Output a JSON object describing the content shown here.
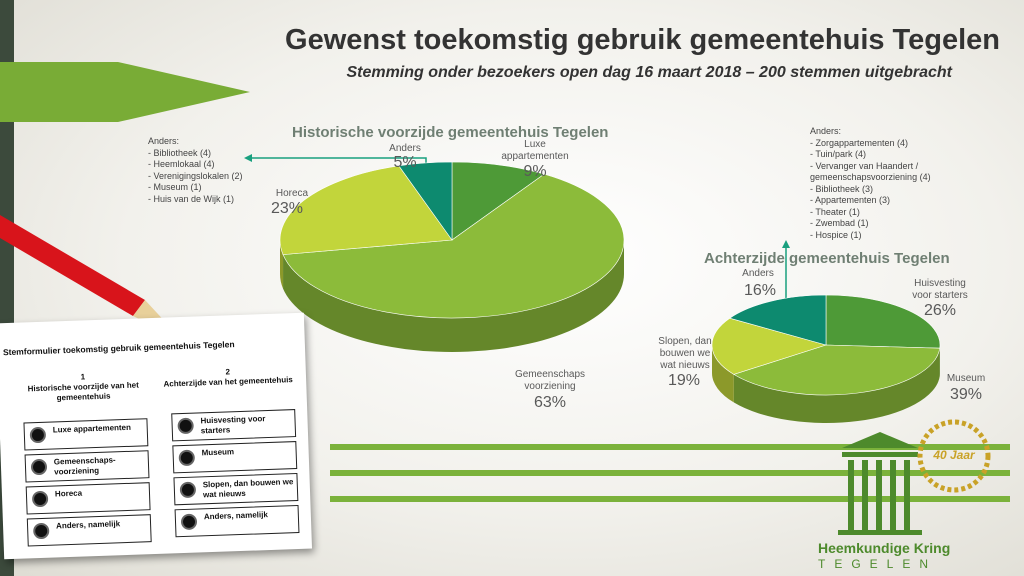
{
  "title": "Gewenst toekomstig gebruik gemeentehuis Tegelen",
  "subtitle": "Stemming onder bezoekers open dag 16 maart 2018 – 200 stemmen uitgebracht",
  "colors": {
    "bright_green": "#8cbb3a",
    "olive": "#c2d53b",
    "teal": "#0d8a6f",
    "dark_green": "#4e9a37"
  },
  "chart_data": [
    {
      "type": "pie",
      "title": "Historische voorzijde gemeentehuis Tegelen",
      "categories": [
        "Luxe appartementen",
        "Gemeenschapsvoorziening",
        "Horeca",
        "Anders"
      ],
      "values": [
        9,
        63,
        23,
        5
      ],
      "labels": [
        {
          "name": "Luxe\nappartementen",
          "pct": "9%"
        },
        {
          "name": "Gemeenschaps\nvoorziening",
          "pct": "63%"
        },
        {
          "name": "Horeca",
          "pct": "23%"
        },
        {
          "name": "Anders",
          "pct": "5%"
        }
      ],
      "anders_heading": "Anders:",
      "anders_items": [
        "Bibliotheek (4)",
        "Heemlokaal (4)",
        "Verenigingslokalen (2)",
        "Museum (1)",
        "Huis van de Wijk (1)"
      ]
    },
    {
      "type": "pie",
      "title": "Achterzijde gemeentehuis Tegelen",
      "categories": [
        "Huisvesting voor starters",
        "Museum",
        "Slopen, dan bouwen we wat nieuws",
        "Anders"
      ],
      "values": [
        26,
        39,
        19,
        16
      ],
      "labels": [
        {
          "name": "Huisvesting\nvoor starters",
          "pct": "26%"
        },
        {
          "name": "Museum",
          "pct": "39%"
        },
        {
          "name": "Slopen, dan\nbouwen we\nwat nieuws",
          "pct": "19%"
        },
        {
          "name": "Anders",
          "pct": "16%"
        }
      ],
      "anders_heading": "Anders:",
      "anders_items": [
        "Zorgappartementen (4)",
        "Tuin/park (4)",
        "Vervanger van Haandert / gemeenschapsvoorziening (4)",
        "Bibliotheek (3)",
        "Appartementen (3)",
        "Theater (1)",
        "Zwembad (1)",
        "Hospice (1)"
      ]
    }
  ],
  "form": {
    "heading": "Stemformulier toekomstig gebruik gemeentehuis Tegelen",
    "col1_num": "1",
    "col1_title": "Historische voorzijde van het gemeentehuis",
    "col2_num": "2",
    "col2_title": "Achterzijde van het gemeentehuis",
    "col1_options": [
      "Luxe appartementen",
      "Gemeenschaps-voorziening",
      "Horeca",
      "Anders, namelijk"
    ],
    "col2_options": [
      "Huisvesting voor starters",
      "Museum",
      "Slopen, dan bouwen we wat nieuws",
      "Anders, namelijk"
    ]
  },
  "logo": {
    "name": "Heemkundige Kring",
    "city": "TEGELEN",
    "badge": "40 Jaar"
  }
}
